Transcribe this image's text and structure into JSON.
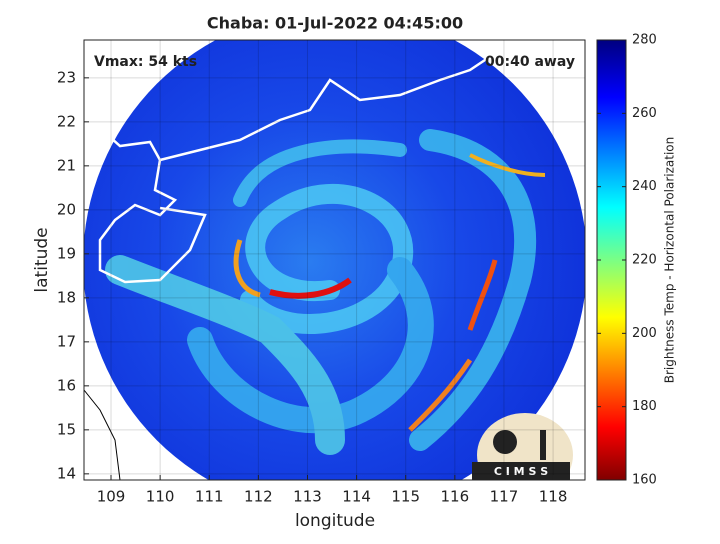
{
  "chart_data": {
    "type": "map",
    "title": "Chaba: 01-Jul-2022 04:45:00",
    "xlabel": "longitude",
    "ylabel": "latitude",
    "xlim": [
      108.45,
      118.65
    ],
    "ylim": [
      13.86,
      23.86
    ],
    "xticks": [
      109,
      110,
      111,
      112,
      113,
      114,
      115,
      116,
      117,
      118
    ],
    "yticks": [
      14,
      15,
      16,
      17,
      18,
      19,
      20,
      21,
      22,
      23
    ],
    "annotations": [
      "Vmax: 54 kts",
      "00:40 away"
    ],
    "colorbar": {
      "label": "Brightness Temp - Horizontal Polarization",
      "clim": [
        160,
        280
      ],
      "ticks": [
        160,
        180,
        200,
        220,
        240,
        260,
        280
      ]
    },
    "logo": "C I M S S"
  }
}
